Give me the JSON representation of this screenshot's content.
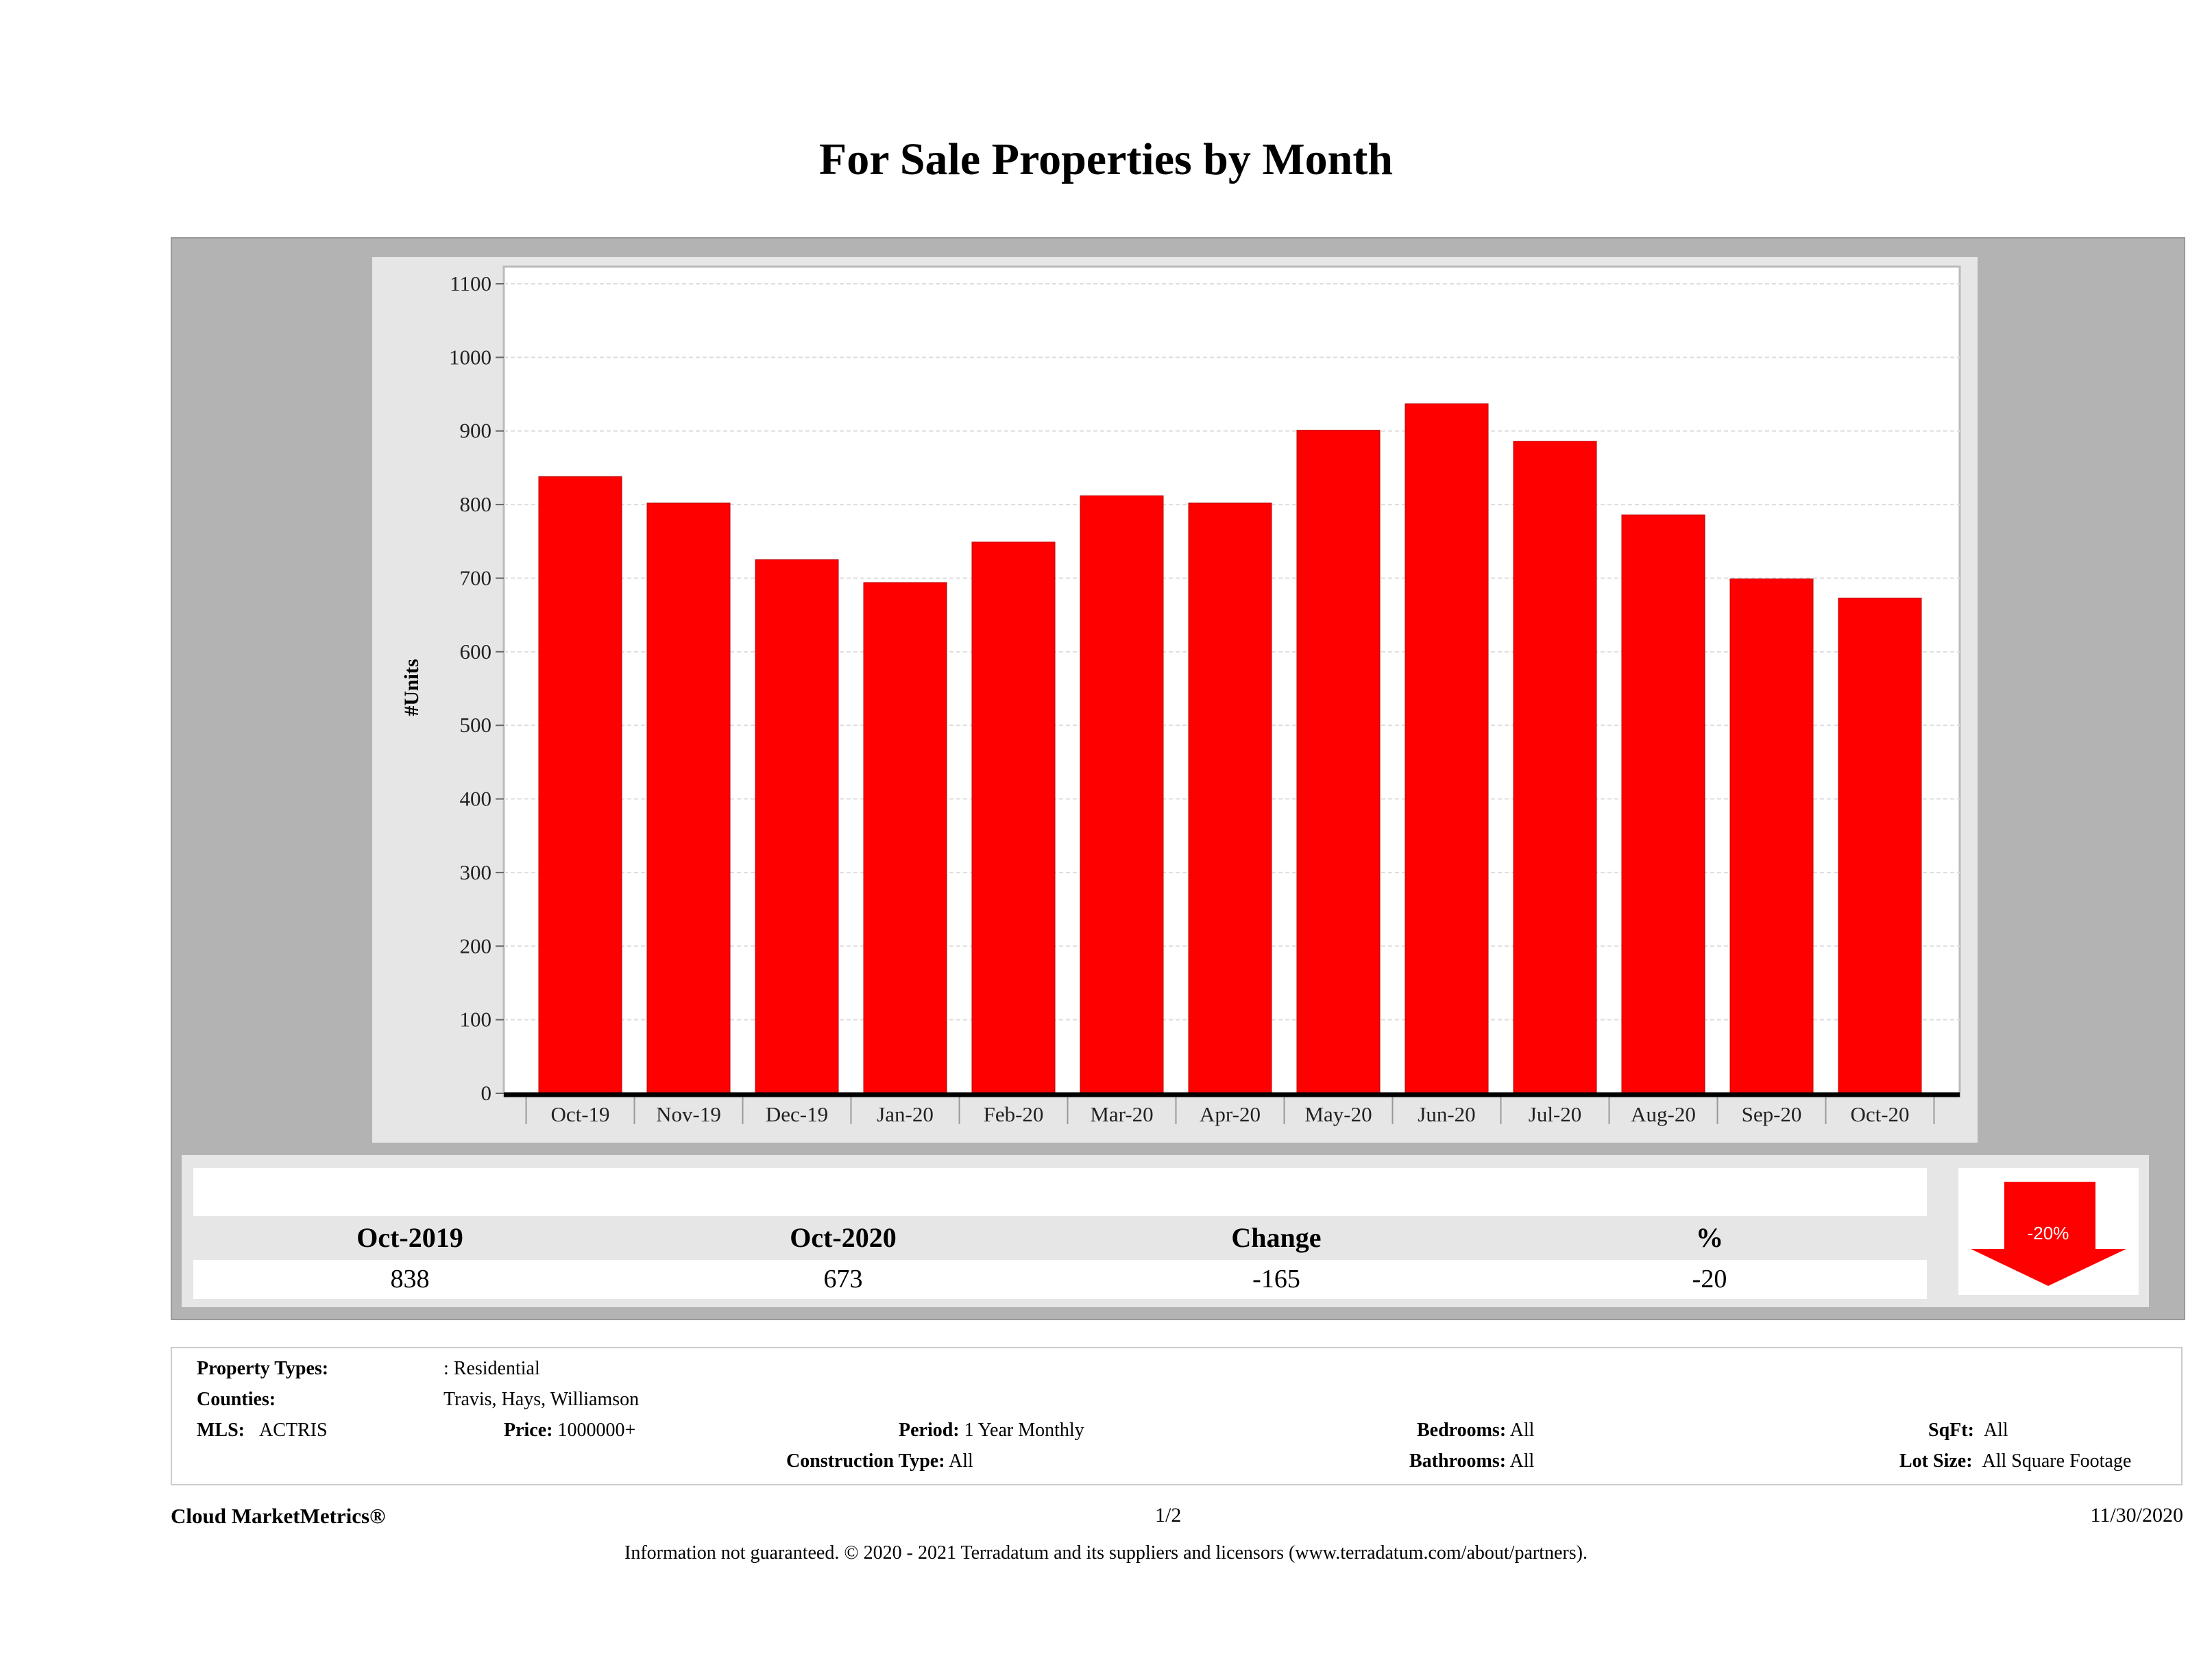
{
  "chart_data": {
    "type": "bar",
    "title": "For Sale Properties by Month",
    "xlabel": "",
    "ylabel": "#Units",
    "ylim": [
      0,
      1100
    ],
    "yticks": [
      0,
      100,
      200,
      300,
      400,
      500,
      600,
      700,
      800,
      900,
      1000,
      1100
    ],
    "categories": [
      "Oct-19",
      "Nov-19",
      "Dec-19",
      "Jan-20",
      "Feb-20",
      "Mar-20",
      "Apr-20",
      "May-20",
      "Jun-20",
      "Jul-20",
      "Aug-20",
      "Sep-20",
      "Oct-20"
    ],
    "values": [
      838,
      802,
      725,
      694,
      749,
      812,
      802,
      901,
      937,
      886,
      786,
      699,
      673
    ],
    "bar_color": "#ff0000",
    "grid": true
  },
  "summary": {
    "headers": [
      "Oct-2019",
      "Oct-2020",
      "Change",
      "%"
    ],
    "values": [
      "838",
      "673",
      "-165",
      "-20"
    ],
    "arrow_label": "-20%",
    "arrow_color": "#ff0000"
  },
  "info": {
    "property_types_label": "Property Types:",
    "property_types": ": Residential",
    "counties_label": "Counties:",
    "counties": "Travis, Hays, Williamson",
    "mls_label": "MLS:",
    "mls": "ACTRIS",
    "price_label": "Price:",
    "price": "1000000+",
    "period_label": "Period:",
    "period": "1 Year Monthly",
    "bedrooms_label": "Bedrooms:",
    "bedrooms": "All",
    "sqft_label": "SqFt:",
    "sqft": "All",
    "construction_label": "Construction Type:",
    "construction": "All",
    "bathrooms_label": "Bathrooms:",
    "bathrooms": "All",
    "lot_label": "Lot Size:",
    "lot": "All Square Footage"
  },
  "footer": {
    "brand": "Cloud MarketMetrics®",
    "page": "1/2",
    "date": "11/30/2020",
    "disclaimer": "Information not guaranteed. © 2020 - 2021 Terradatum and its suppliers and licensors (www.terradatum.com/about/partners)."
  }
}
